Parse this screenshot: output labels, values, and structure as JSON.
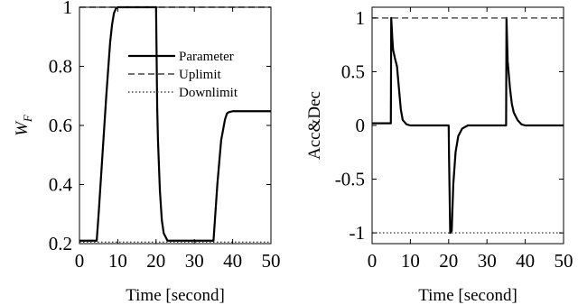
{
  "chart_data": [
    {
      "type": "line",
      "xlabel": "Time [second]",
      "ylabel_main": "W",
      "ylabel_sub": "F",
      "xlim": [
        0,
        50
      ],
      "ylim": [
        0.2,
        1.0
      ],
      "xticks": [
        0,
        10,
        20,
        30,
        40,
        50
      ],
      "yticks": [
        0.2,
        0.4,
        0.6,
        0.8,
        1.0
      ],
      "xtick_labels": [
        "0",
        "10",
        "20",
        "30",
        "40",
        "50"
      ],
      "ytick_labels": [
        "0.2",
        "0.4",
        "0.6",
        "0.8",
        "1"
      ],
      "grid": false,
      "legend": {
        "position": "top-right",
        "entries": [
          "Parameter",
          "Uplimit",
          "Downlimit"
        ]
      },
      "series": [
        {
          "name": "Parameter",
          "style": "solid",
          "x": [
            0,
            4.5,
            5,
            6,
            7,
            8,
            8.5,
            9,
            9.5,
            10,
            11,
            20,
            20.3,
            20.5,
            21,
            21.5,
            22,
            23,
            24,
            35,
            36,
            37,
            38,
            38.5,
            39,
            40,
            50
          ],
          "y": [
            0.21,
            0.21,
            0.3,
            0.5,
            0.7,
            0.88,
            0.94,
            0.98,
            0.995,
            1.0,
            1.0,
            1.0,
            0.66,
            0.55,
            0.38,
            0.28,
            0.235,
            0.21,
            0.21,
            0.21,
            0.4,
            0.55,
            0.62,
            0.64,
            0.645,
            0.648,
            0.648
          ]
        },
        {
          "name": "Uplimit",
          "style": "dashed",
          "x": [
            0,
            50
          ],
          "y": [
            1.0,
            1.0
          ]
        },
        {
          "name": "Downlimit",
          "style": "dotted",
          "x": [
            0,
            50
          ],
          "y": [
            0.205,
            0.205
          ]
        }
      ]
    },
    {
      "type": "line",
      "xlabel": "Time [second]",
      "ylabel": "Acc&Dec",
      "xlim": [
        0,
        50
      ],
      "ylim": [
        -1.1,
        1.1
      ],
      "xticks": [
        0,
        10,
        20,
        30,
        40,
        50
      ],
      "yticks": [
        -1,
        -0.5,
        0,
        0.5,
        1
      ],
      "xtick_labels": [
        "0",
        "10",
        "20",
        "30",
        "40",
        "50"
      ],
      "ytick_labels": [
        "-1",
        "-0.5",
        "0",
        "0.5",
        "1"
      ],
      "grid": false,
      "series": [
        {
          "style": "solid",
          "x": [
            0,
            4.9,
            5.0,
            5.3,
            5.5,
            6.0,
            6.5,
            7.0,
            7.5,
            8.0,
            9.0,
            10,
            20,
            20.1,
            20.4,
            20.8,
            21.2,
            21.8,
            22.5,
            23.5,
            25,
            35,
            35.1,
            35.4,
            36,
            36.5,
            37,
            38,
            39,
            40,
            50
          ],
          "y": [
            0.02,
            0.02,
            1.0,
            0.8,
            0.7,
            0.62,
            0.55,
            0.35,
            0.15,
            0.05,
            0.01,
            0.0,
            0.0,
            -0.3,
            -1.0,
            -0.98,
            -0.55,
            -0.25,
            -0.1,
            -0.03,
            0.0,
            0.0,
            1.0,
            0.6,
            0.35,
            0.2,
            0.12,
            0.05,
            0.01,
            0.0,
            0.0
          ]
        },
        {
          "style": "dashed",
          "x": [
            0,
            50
          ],
          "y": [
            1.0,
            1.0
          ]
        },
        {
          "style": "dotted",
          "x": [
            0,
            50
          ],
          "y": [
            -1.0,
            -1.0
          ]
        }
      ]
    }
  ]
}
